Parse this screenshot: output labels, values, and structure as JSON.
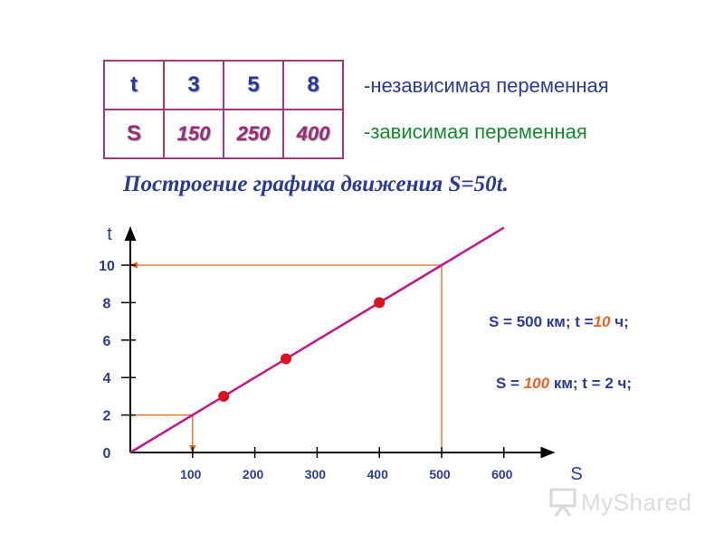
{
  "table": {
    "row_t": {
      "label": "t",
      "values": [
        "3",
        "5",
        "8"
      ]
    },
    "row_s": {
      "label": "S",
      "values": [
        "150",
        "250",
        "400"
      ]
    }
  },
  "notes": {
    "independent": "-независимая переменная",
    "dependent": "-зависимая переменная"
  },
  "title": "Построение графика движения  S=50t.",
  "chart_data": {
    "type": "line",
    "xlabel": "S",
    "ylabel": "t",
    "xlim": [
      0,
      680
    ],
    "ylim": [
      0,
      12
    ],
    "x_ticks": [
      100,
      200,
      300,
      400,
      500,
      600
    ],
    "x_tick_labels": [
      "100",
      "200",
      "300",
      "400",
      "500",
      "600"
    ],
    "y_ticks": [
      0,
      2,
      4,
      6,
      8,
      10
    ],
    "y_tick_labels": [
      "0",
      "2",
      "4",
      "6",
      "8",
      "10"
    ],
    "series": [
      {
        "points": [
          [
            0,
            0
          ],
          [
            600,
            12
          ]
        ],
        "color": "#c2168c"
      }
    ],
    "highlight_points": [
      [
        150,
        3
      ],
      [
        250,
        5
      ],
      [
        400,
        8
      ]
    ],
    "point_color": "#e0101c",
    "guides": [
      {
        "from": [
          500,
          0
        ],
        "to": [
          500,
          10
        ],
        "via": [
          0,
          10
        ],
        "color": "#e8641c"
      },
      {
        "from": [
          0,
          2
        ],
        "to": [
          100,
          2
        ],
        "via": [
          100,
          0
        ],
        "color": "#e8641c"
      }
    ]
  },
  "annotations": {
    "a1_prefix": "S = 500 км;  t =",
    "a1_value": "10",
    "a1_suffix": " ч;",
    "a2_prefix": "S = ",
    "a2_value": "100",
    "a2_suffix": "  км;   t = 2 ч;"
  },
  "watermark": {
    "text": "MyShared",
    "icon": "presentation-board-icon"
  }
}
